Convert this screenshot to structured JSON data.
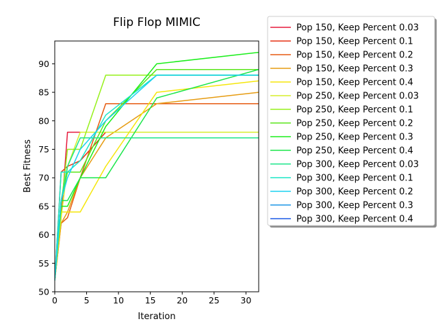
{
  "chart_data": {
    "type": "line",
    "title": "Flip Flop MIMIC",
    "xlabel": "Iteration",
    "ylabel": "Best Fitness",
    "xlim": [
      0,
      32
    ],
    "ylim": [
      50,
      94
    ],
    "xticks": [
      0,
      5,
      10,
      15,
      20,
      25,
      30
    ],
    "yticks": [
      50,
      55,
      60,
      65,
      70,
      75,
      80,
      85,
      90
    ],
    "grid": false,
    "legend_placement": "outside-right",
    "x": [
      0,
      1,
      2,
      4,
      8,
      16,
      32
    ],
    "series": [
      {
        "name": "Pop 150, Keep Percent 0.03",
        "color": "#e6193c",
        "values": [
          52,
          63,
          78,
          78,
          null,
          null,
          null
        ]
      },
      {
        "name": "Pop 150, Keep Percent 0.1",
        "color": "#e62e10",
        "values": [
          52,
          71,
          72,
          73,
          78,
          null,
          null
        ]
      },
      {
        "name": "Pop 150, Keep Percent 0.2",
        "color": "#e65a10",
        "values": [
          52,
          62,
          63,
          70,
          83,
          83,
          83
        ]
      },
      {
        "name": "Pop 150, Keep Percent 0.3",
        "color": "#e69b10",
        "values": [
          52,
          62,
          64,
          70,
          77,
          83,
          85
        ]
      },
      {
        "name": "Pop 150, Keep Percent 0.4",
        "color": "#f5e60a",
        "values": [
          52,
          64,
          64,
          64,
          72,
          85,
          87
        ]
      },
      {
        "name": "Pop 250, Keep Percent 0.03",
        "color": "#d6ee2a",
        "values": [
          52,
          63,
          72,
          78,
          78,
          78,
          78
        ]
      },
      {
        "name": "Pop 250, Keep Percent 0.1",
        "color": "#96f01a",
        "values": [
          52,
          65,
          75,
          75,
          88,
          88,
          88
        ]
      },
      {
        "name": "Pop 250, Keep Percent 0.2",
        "color": "#5ae61a",
        "values": [
          52,
          66,
          71,
          71,
          80,
          89,
          89
        ]
      },
      {
        "name": "Pop 250, Keep Percent 0.3",
        "color": "#1aee1a",
        "values": [
          52,
          65,
          65,
          70,
          79,
          90,
          92
        ]
      },
      {
        "name": "Pop 250, Keep Percent 0.4",
        "color": "#1ae64a",
        "values": [
          52,
          66,
          66,
          70,
          70,
          84,
          89
        ]
      },
      {
        "name": "Pop 300, Keep Percent 0.03",
        "color": "#1ae68a",
        "values": [
          52,
          66,
          72,
          77,
          77,
          77,
          77
        ]
      },
      {
        "name": "Pop 300, Keep Percent 0.1",
        "color": "#1ae6c6",
        "values": [
          52,
          71,
          71,
          73,
          81,
          88,
          88
        ]
      },
      {
        "name": "Pop 300, Keep Percent 0.2",
        "color": "#1ad0f0",
        "values": [
          52,
          66,
          70,
          75,
          80,
          88,
          88
        ]
      },
      {
        "name": "Pop 300, Keep Percent 0.3",
        "color": "#1a96e6",
        "values": [
          null,
          null,
          null,
          null,
          null,
          null,
          null
        ]
      },
      {
        "name": "Pop 300, Keep Percent 0.4",
        "color": "#1a5ae6",
        "values": [
          null,
          null,
          null,
          null,
          null,
          null,
          null
        ]
      }
    ]
  }
}
